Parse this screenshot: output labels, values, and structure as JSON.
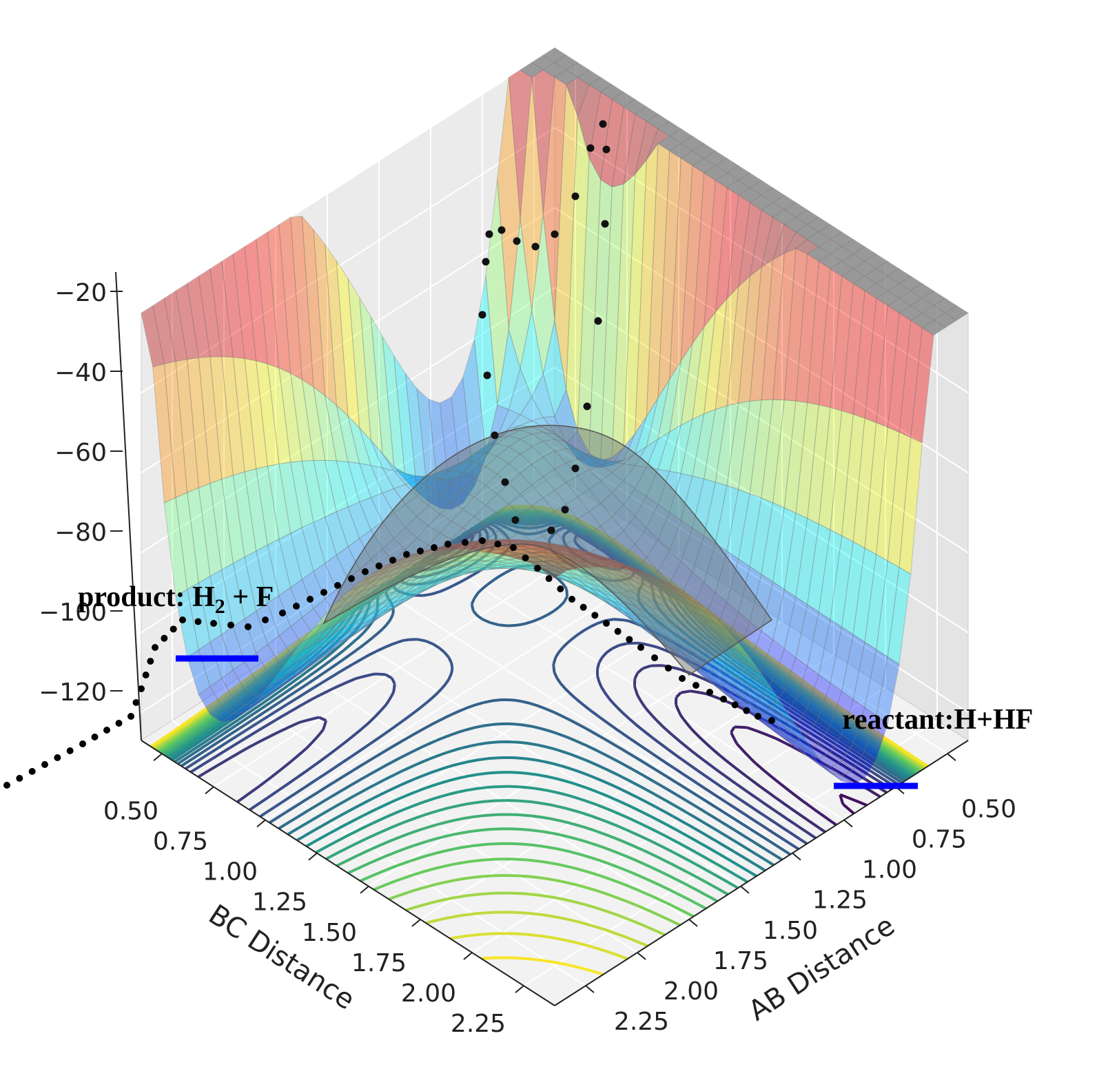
{
  "chart_data": {
    "type": "surface",
    "subtype": "3d surface with floor contour projection and trajectory points",
    "title": "",
    "xlabel": "AB Distance",
    "ylabel": "BC Distance",
    "zlabel": "",
    "x_ticks": [
      "0.50",
      "0.75",
      "1.00",
      "1.25",
      "1.50",
      "1.75",
      "2.00",
      "2.25"
    ],
    "y_ticks": [
      "0.50",
      "0.75",
      "1.00",
      "1.25",
      "1.50",
      "1.75",
      "2.00",
      "2.25"
    ],
    "z_ticks": [
      "−20",
      "−40",
      "−60",
      "−80",
      "−100",
      "−120"
    ],
    "z_tick_values": [
      -20,
      -40,
      -60,
      -80,
      -100,
      -120
    ],
    "xlim": [
      0.4,
      2.4
    ],
    "ylim": [
      0.4,
      2.4
    ],
    "zlim": [
      -127,
      -20
    ],
    "grid": true,
    "colormap_surface": "jet (translucent)",
    "colormap_contour": "viridis",
    "annotations": {
      "product_prefix": "product: H",
      "product_sub": "2",
      "product_suffix": " + F",
      "reactant": "reactant:H+HF"
    },
    "colors": {
      "marker_bar": "#0000ff",
      "trajectory": "#000000",
      "pane": "#ebebeb",
      "clipped_top": "#8c8c8c"
    }
  }
}
